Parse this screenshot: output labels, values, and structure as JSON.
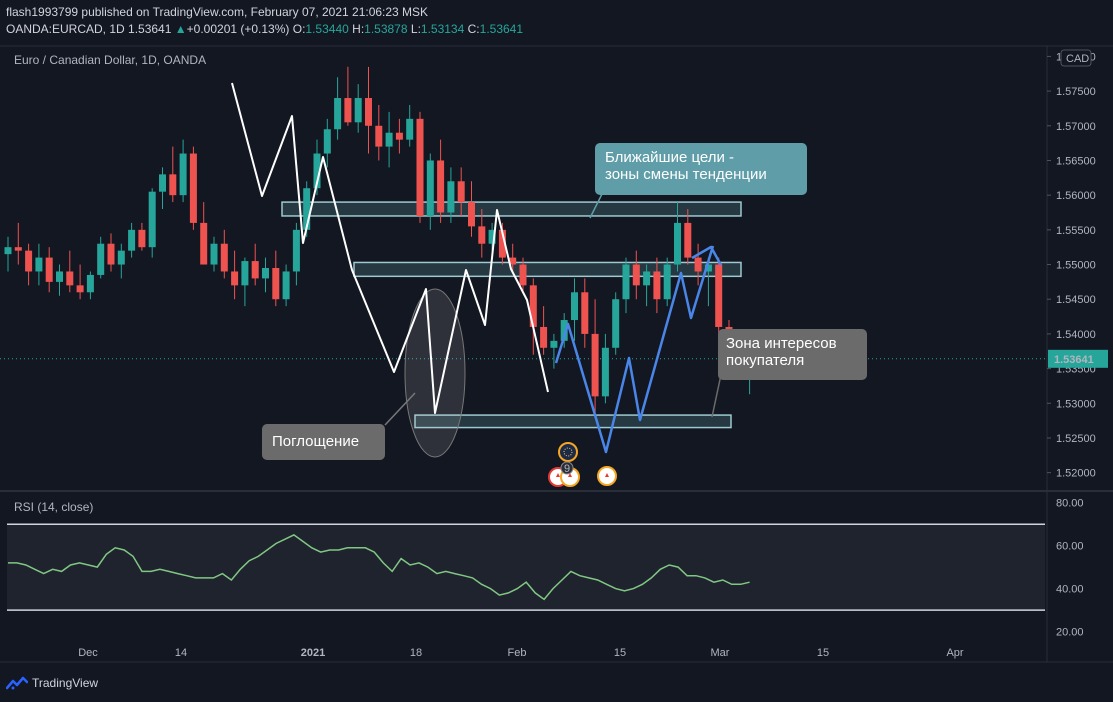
{
  "header": {
    "published_line": "flash1993799 published on TradingView.com, February 07, 2021 21:06:23 MSK",
    "symbol_interval": "OANDA:EURCAD, 1D",
    "last": "1.53641",
    "change_arrow": "▲",
    "change": "+0.00201 (+0.13%)",
    "o_label": "O:",
    "o_value": "1.53440",
    "h_label": "H:",
    "h_value": "1.53878",
    "l_label": "L:",
    "l_value": "1.53134",
    "c_label": "C:",
    "c_value": "1.53641"
  },
  "main_pane": {
    "title": "Euro / Canadian Dollar, 1D, OANDA",
    "currency_badge": "CAD",
    "last_price_label": "1.53641"
  },
  "rsi_pane": {
    "title": "RSI (14, close)"
  },
  "annotations": {
    "targets": "Ближайшие цели -\nзоны смены тенденции",
    "buyer_zone": "Зона интересов\nпокупателя",
    "engulfing": "Поглощение",
    "event_count": "9"
  },
  "footer": {
    "brand": "TradingView"
  },
  "colors": {
    "background": "#131722",
    "bull": "#26a69a",
    "bear": "#ef5350",
    "rsi_line": "#81c784",
    "projection": "#4a86e8",
    "zigzag": "#ffffff",
    "callout_teal": "#5f9ea8",
    "callout_gray": "#6b6b6b"
  },
  "chart_data": [
    {
      "type": "candlestick",
      "symbol": "EURCAD",
      "x_tick_labels": [
        "Dec",
        "14",
        "2021",
        "18",
        "Feb",
        "15",
        "Mar",
        "15",
        "Apr"
      ],
      "y_tick_labels": [
        "1.58000",
        "1.57500",
        "1.57000",
        "1.56500",
        "1.56000",
        "1.55500",
        "1.55000",
        "1.54500",
        "1.54000",
        "1.53500",
        "1.53000",
        "1.52500",
        "1.52000"
      ],
      "ylim": [
        1.5175,
        1.5815
      ],
      "last_price": 1.53641,
      "ohlc": [
        [
          1.5515,
          1.554,
          1.549,
          1.5525
        ],
        [
          1.5525,
          1.556,
          1.55,
          1.552
        ],
        [
          1.552,
          1.553,
          1.547,
          1.549
        ],
        [
          1.549,
          1.553,
          1.547,
          1.551
        ],
        [
          1.551,
          1.5525,
          1.546,
          1.5475
        ],
        [
          1.5475,
          1.55,
          1.5455,
          1.549
        ],
        [
          1.549,
          1.552,
          1.546,
          1.547
        ],
        [
          1.547,
          1.55,
          1.545,
          1.546
        ],
        [
          1.546,
          1.549,
          1.545,
          1.5485
        ],
        [
          1.5485,
          1.554,
          1.548,
          1.553
        ],
        [
          1.553,
          1.5545,
          1.549,
          1.55
        ],
        [
          1.55,
          1.553,
          1.548,
          1.552
        ],
        [
          1.552,
          1.556,
          1.551,
          1.555
        ],
        [
          1.555,
          1.556,
          1.552,
          1.5525
        ],
        [
          1.5525,
          1.561,
          1.551,
          1.5605
        ],
        [
          1.5605,
          1.564,
          1.558,
          1.563
        ],
        [
          1.563,
          1.567,
          1.559,
          1.56
        ],
        [
          1.56,
          1.568,
          1.559,
          1.566
        ],
        [
          1.566,
          1.567,
          1.555,
          1.556
        ],
        [
          1.556,
          1.559,
          1.55,
          1.55
        ],
        [
          1.55,
          1.554,
          1.549,
          1.553
        ],
        [
          1.553,
          1.555,
          1.548,
          1.549
        ],
        [
          1.549,
          1.552,
          1.545,
          1.547
        ],
        [
          1.547,
          1.551,
          1.544,
          1.5505
        ],
        [
          1.5505,
          1.553,
          1.547,
          1.548
        ],
        [
          1.548,
          1.551,
          1.546,
          1.5495
        ],
        [
          1.5495,
          1.552,
          1.544,
          1.545
        ],
        [
          1.545,
          1.55,
          1.544,
          1.549
        ],
        [
          1.549,
          1.556,
          1.547,
          1.555
        ],
        [
          1.555,
          1.562,
          1.554,
          1.561
        ],
        [
          1.561,
          1.568,
          1.56,
          1.566
        ],
        [
          1.566,
          1.571,
          1.564,
          1.5695
        ],
        [
          1.5695,
          1.577,
          1.568,
          1.574
        ],
        [
          1.574,
          1.5785,
          1.57,
          1.5705
        ],
        [
          1.5705,
          1.576,
          1.569,
          1.574
        ],
        [
          1.574,
          1.5785,
          1.566,
          1.57
        ],
        [
          1.57,
          1.573,
          1.565,
          1.567
        ],
        [
          1.567,
          1.572,
          1.564,
          1.569
        ],
        [
          1.569,
          1.571,
          1.566,
          1.568
        ],
        [
          1.568,
          1.573,
          1.567,
          1.571
        ],
        [
          1.571,
          1.572,
          1.556,
          1.557
        ],
        [
          1.557,
          1.566,
          1.555,
          1.565
        ],
        [
          1.565,
          1.568,
          1.556,
          1.5575
        ],
        [
          1.5575,
          1.564,
          1.556,
          1.562
        ],
        [
          1.562,
          1.564,
          1.557,
          1.559
        ],
        [
          1.559,
          1.562,
          1.554,
          1.5555
        ],
        [
          1.5555,
          1.558,
          1.551,
          1.553
        ],
        [
          1.553,
          1.556,
          1.552,
          1.555
        ],
        [
          1.555,
          1.556,
          1.55,
          1.551
        ],
        [
          1.551,
          1.553,
          1.549,
          1.55
        ],
        [
          1.55,
          1.551,
          1.546,
          1.547
        ],
        [
          1.547,
          1.548,
          1.537,
          1.541
        ],
        [
          1.541,
          1.544,
          1.537,
          1.538
        ],
        [
          1.538,
          1.54,
          1.535,
          1.539
        ],
        [
          1.539,
          1.543,
          1.538,
          1.542
        ],
        [
          1.542,
          1.548,
          1.539,
          1.546
        ],
        [
          1.546,
          1.548,
          1.538,
          1.54
        ],
        [
          1.54,
          1.545,
          1.528,
          1.531
        ],
        [
          1.531,
          1.54,
          1.53,
          1.538
        ],
        [
          1.538,
          1.546,
          1.537,
          1.545
        ],
        [
          1.545,
          1.551,
          1.543,
          1.55
        ],
        [
          1.55,
          1.552,
          1.545,
          1.547
        ],
        [
          1.547,
          1.55,
          1.544,
          1.549
        ],
        [
          1.549,
          1.551,
          1.543,
          1.545
        ],
        [
          1.545,
          1.551,
          1.544,
          1.55
        ],
        [
          1.55,
          1.559,
          1.549,
          1.556
        ],
        [
          1.556,
          1.558,
          1.55,
          1.551
        ],
        [
          1.551,
          1.553,
          1.547,
          1.549
        ],
        [
          1.549,
          1.551,
          1.544,
          1.55
        ],
        [
          1.55,
          1.551,
          1.54,
          1.541
        ],
        [
          1.541,
          1.542,
          1.537,
          1.5395
        ],
        [
          1.5395,
          1.54,
          1.535,
          1.536
        ],
        [
          1.5345,
          1.5388,
          1.5313,
          1.5364
        ]
      ],
      "projection_path": [
        {
          "date_label": "Feb 8",
          "price": 1.5425
        },
        {
          "date_label": "Feb 12",
          "price": 1.524
        },
        {
          "date_label": "Feb 14",
          "price": 1.537
        },
        {
          "date_label": "Feb 16",
          "price": 1.528
        },
        {
          "date_label": "Feb 24",
          "price": 1.55
        },
        {
          "date_label": "Feb 26",
          "price": 1.543
        },
        {
          "date_label": "Mar 1",
          "price": 1.554
        }
      ],
      "zones": [
        {
          "from": 1.557,
          "to": 1.559
        },
        {
          "from": 1.5483,
          "to": 1.5503
        },
        {
          "from": 1.5265,
          "to": 1.5283
        }
      ]
    },
    {
      "type": "line",
      "name": "RSI (14, close)",
      "y_tick_labels": [
        "80.00",
        "60.00",
        "40.00",
        "20.00"
      ],
      "ylim": [
        17,
        85
      ],
      "bands": [
        70,
        30
      ],
      "values": [
        52,
        52,
        51,
        49,
        47,
        49,
        48,
        51,
        52,
        51,
        50,
        56,
        59,
        58,
        55,
        48,
        48,
        49,
        48,
        47,
        46,
        45,
        45,
        45,
        47,
        44,
        49,
        53,
        55,
        58,
        61,
        63,
        65,
        62,
        59,
        57,
        58,
        58,
        59,
        59,
        59,
        57,
        52,
        48,
        54,
        51,
        52,
        50,
        47,
        48,
        47,
        46,
        45,
        42,
        40,
        37,
        38,
        40,
        43,
        38,
        35,
        40,
        44,
        48,
        46,
        45,
        44,
        42,
        40,
        39,
        40,
        42,
        45,
        49,
        51,
        50,
        46,
        46,
        45,
        43,
        44,
        42,
        42,
        43
      ]
    }
  ]
}
